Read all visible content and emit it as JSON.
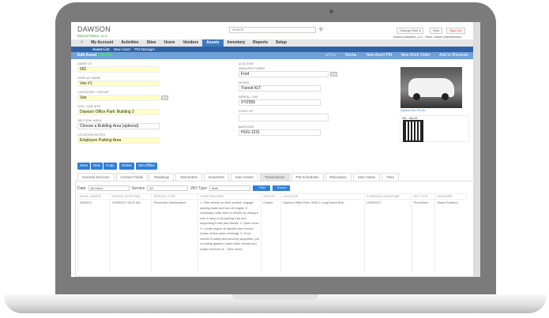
{
  "header": {
    "logo_line1": "DAWSON",
    "logo_line2": "INDUSTRIES, LLC",
    "search_placeholder": "Search",
    "change_role": "Change Role ▾",
    "help": "Help",
    "sign_out": "Sign Out",
    "user_line": "Dawson Industries, LLC - Steve Carlson (Administrator)"
  },
  "nav": {
    "items": [
      "My Account",
      "Activities",
      "Sites",
      "Users",
      "Vendors",
      "Assets",
      "Inventory",
      "Reports",
      "Setup"
    ],
    "active": "Assets"
  },
  "subnav": [
    "Asset List",
    "New Asset",
    "PM Manager"
  ],
  "editbar": {
    "title": "Edit Asset",
    "status": "ONLINE",
    "prev": "◄Prev",
    "next": "Next►",
    "new_pm": "New Asset PM",
    "new_wo": "New Work Order",
    "shortcut": "Add to Shortcuts"
  },
  "form": {
    "asset_id": {
      "label": "ASSET ID",
      "value": "001"
    },
    "display_name": {
      "label": "DISPLAY NAME",
      "value": "Van #1"
    },
    "category": {
      "label": "CATEGORY / GROUP",
      "value": "Van"
    },
    "site": {
      "label": "SITE: SUB SITE",
      "value": "Dawson Office Park: Building 2"
    },
    "section": {
      "label": "SECTION: AREA",
      "value": "Choose a Building Area (optional)"
    },
    "location_notes": {
      "label": "LOCATION NOTES",
      "value": "Employee Parking Area"
    },
    "active": {
      "label": "ACTIVE",
      "checked": true
    },
    "manufacturer": {
      "label": "MANUFACTURER",
      "value": "Ford"
    },
    "model": {
      "label": "MODEL",
      "value": "Transit XLT"
    },
    "serial": {
      "label": "SERIAL / VIN",
      "value": "XYZ555"
    },
    "child_of": {
      "label": "CHILD OF",
      "value": ""
    },
    "barcode": {
      "label": "BARCODE",
      "value": "HUG-1231"
    },
    "upload_photo": "Upload New Photo",
    "qr_caption": "001 : Van #1"
  },
  "actions": [
    "Save",
    "New",
    "Copy",
    "Delete",
    "Set Offline"
  ],
  "tabs": [
    "General Services",
    "Custom Fields",
    "Readings",
    "Warranties",
    "Downtime",
    "Sub-Assets",
    "Transactions",
    "PM Schedules",
    "Relocation",
    "User Notes",
    "Files"
  ],
  "active_tab": "Transactions",
  "filter": {
    "date_label": "Date",
    "date_value": "All Dates",
    "service_label": "Service",
    "service_value": "All",
    "wotype_label": "WO Type",
    "wotype_value": "Both",
    "filter_btn": "Filter",
    "export_btn": "Export"
  },
  "table": {
    "headers": [
      "WORK ORDER",
      "CREATE DATE/TIME",
      "SERVICE TYPE",
      "SYMPTOM/TASK",
      "STATUS",
      "LOCATION",
      "SCHEDULE DATE/TIME",
      "WO TYPE",
      "ASSIGNEE"
    ],
    "rows": [
      [
        "0604874",
        "10/05/2017 09:22 AM",
        "Preventive Maintenance",
        "1. Park vehicle on level surface, engage parking brake and turn off engine. If necessary, raise front of vehicle by driving it onto a ramp or by jacking it up and supporting it with jack stands. 2. Open hood. 3. Locate engine oil dipstick and remove (helps oil flow when draining). 4. Once vehicle is safely and securely supported, put on safety glasses, crawl under vehicle and locate reservoir of... (See more)",
        "Closed",
        "Dawson Office Park: 3005-2 Long Beach Blvd",
        "10/05/2017",
        "Preventive",
        "Shawn Dawson"
      ]
    ]
  }
}
